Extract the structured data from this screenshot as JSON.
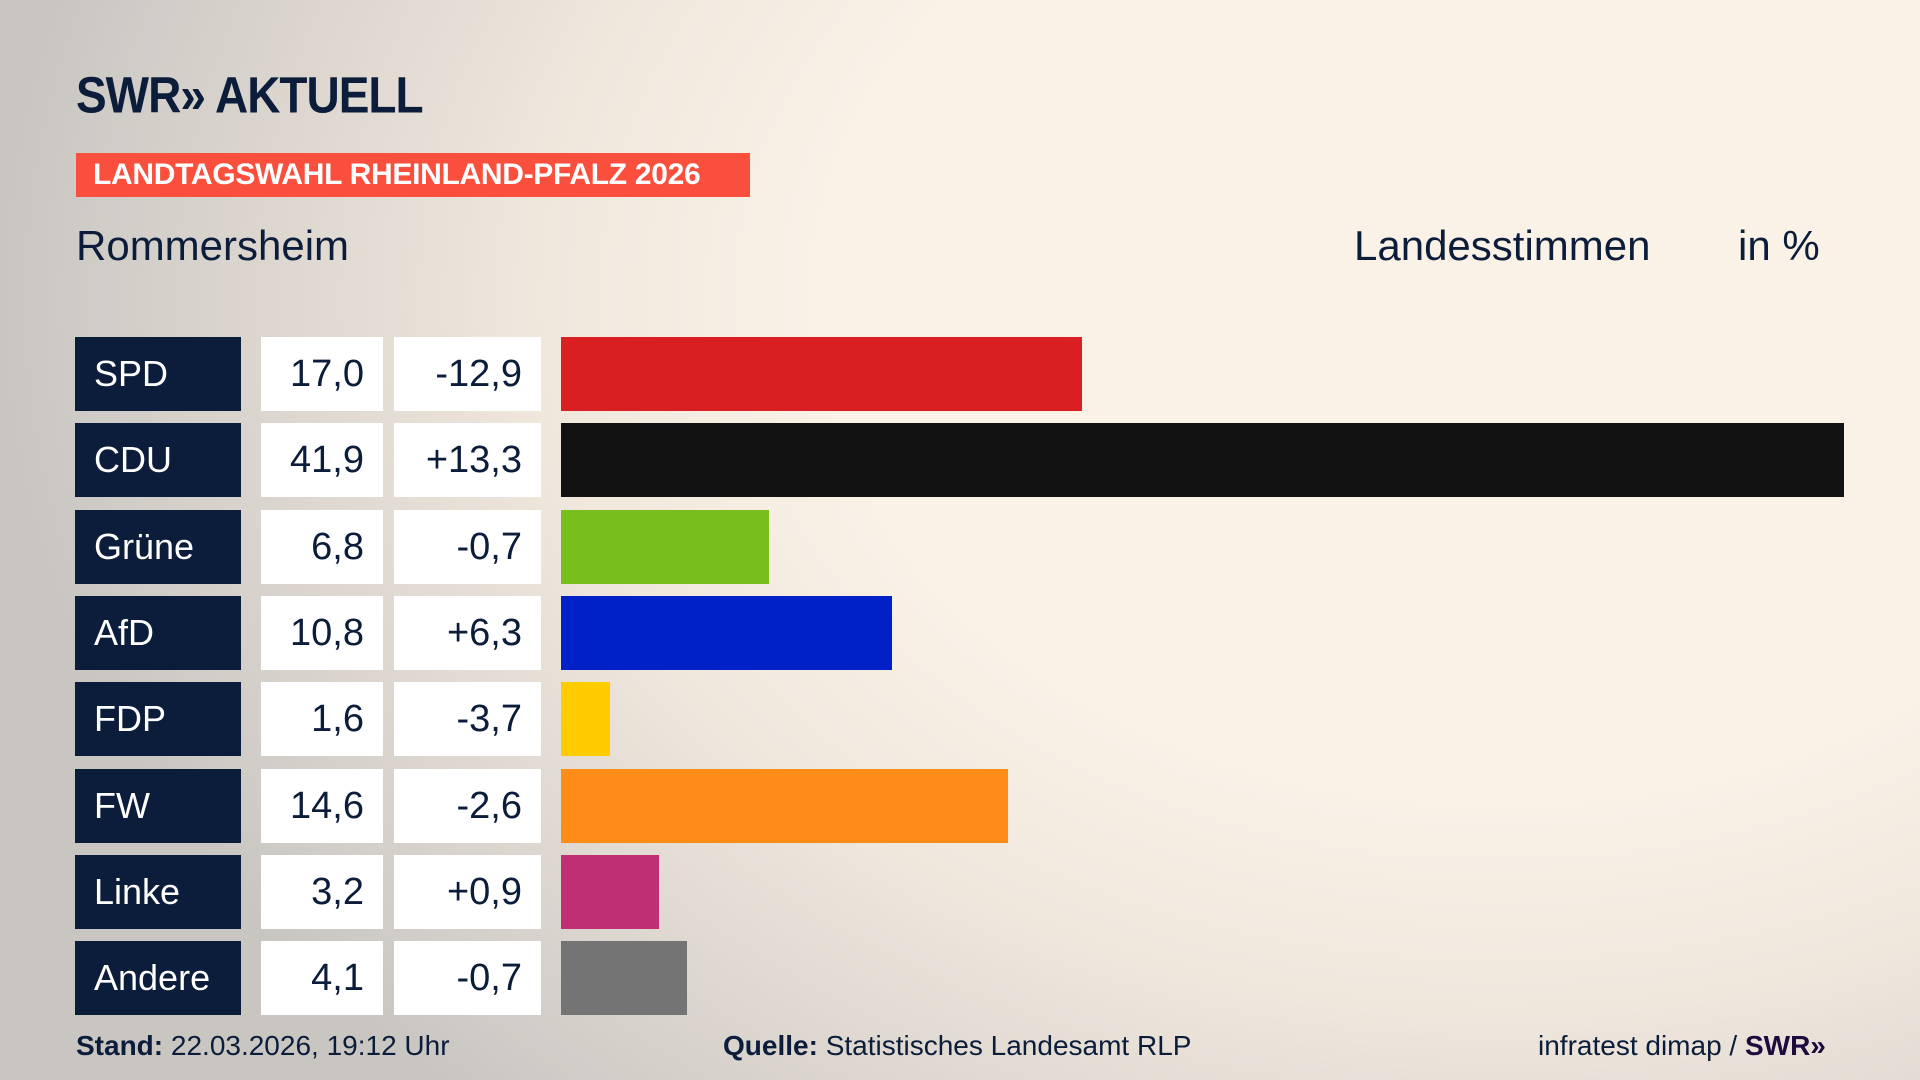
{
  "header": {
    "logo": "SWR» AKTUELL",
    "banner": "LANDTAGSWAHL RHEINLAND-PFALZ 2026",
    "place": "Rommersheim",
    "vote_type": "Landesstimmen",
    "unit": "in %"
  },
  "chart_data": {
    "type": "bar",
    "orientation": "horizontal",
    "xlim": [
      0,
      41.9
    ],
    "categories": [
      "SPD",
      "CDU",
      "Grüne",
      "AfD",
      "FDP",
      "FW",
      "Linke",
      "Andere"
    ],
    "values": [
      17.0,
      41.9,
      6.8,
      10.8,
      1.6,
      14.6,
      3.2,
      4.1
    ],
    "value_labels": [
      "17,0",
      "41,9",
      "6,8",
      "10,8",
      "1,6",
      "14,6",
      "3,2",
      "4,1"
    ],
    "diff_labels": [
      "-12,9",
      "+13,3",
      "-0,7",
      "+6,3",
      "-3,7",
      "-2,6",
      "+0,9",
      "-0,7"
    ],
    "colors": [
      "#d91f21",
      "#121212",
      "#78be1c",
      "#0021c8",
      "#ffcc00",
      "#fe8c17",
      "#be2f74",
      "#747474"
    ]
  },
  "footer": {
    "stand_label": "Stand:",
    "stand": "22.03.2026, 19:12 Uhr",
    "source_label": "Quelle:",
    "source": "Statistisches Landesamt RLP",
    "credit": "infratest dimap / ",
    "credit_logo": "SWR»"
  }
}
